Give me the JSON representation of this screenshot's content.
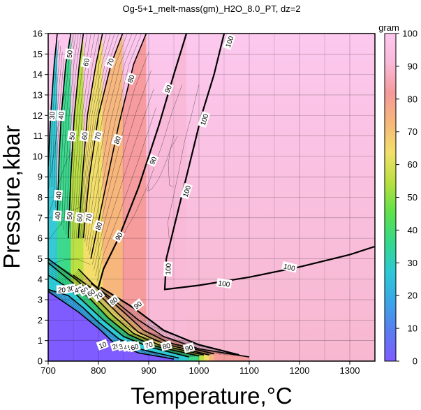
{
  "chart_data": {
    "type": "heatmap",
    "title": "Og-5+1_melt-mass(gm)_H2O_8.0_PT, dz=2",
    "xlabel": "Temperature,°C",
    "ylabel": "Pressure,kbar",
    "colorbar_label": "gram",
    "xlim": [
      700,
      1350
    ],
    "ylim": [
      0,
      16
    ],
    "zlim": [
      0,
      100
    ],
    "x_ticks": [
      700,
      800,
      900,
      1000,
      1100,
      1200,
      1300
    ],
    "y_ticks": [
      0,
      1,
      2,
      3,
      4,
      5,
      6,
      7,
      8,
      9,
      10,
      11,
      12,
      13,
      14,
      15,
      16
    ],
    "colorbar_ticks": [
      0,
      10,
      20,
      30,
      40,
      50,
      60,
      70,
      80,
      90,
      100
    ],
    "grid": true,
    "colormap": [
      "#7f5cff",
      "#5a7cf0",
      "#3aa6e8",
      "#2cc9d6",
      "#34d98a",
      "#5fe14a",
      "#b8e040",
      "#f2e06a",
      "#f7b77a",
      "#f59a9a",
      "#f9b9d8",
      "#ffc8f0"
    ],
    "contours": [
      {
        "level": 10,
        "label": "10",
        "points": [
          [
            700,
            3.4
          ],
          [
            760,
            2.4
          ],
          [
            800,
            1.6
          ],
          [
            830,
            0.9
          ],
          [
            880,
            0.4
          ],
          [
            950,
            0.1
          ]
        ]
      },
      {
        "level": 20,
        "label": "20",
        "points": [
          [
            700,
            3.5
          ],
          [
            740,
            3.2
          ],
          [
            770,
            2.6
          ],
          [
            800,
            1.9
          ],
          [
            840,
            1.1
          ],
          [
            880,
            0.6
          ],
          [
            960,
            0.15
          ]
        ]
      },
      {
        "level": 30,
        "label": "30",
        "points": [
          [
            700,
            9.5
          ],
          [
            705,
            12.0
          ],
          [
            712,
            14.5
          ],
          [
            718,
            16
          ],
          null,
          [
            700,
            4.2
          ],
          [
            745,
            3.5
          ],
          [
            775,
            2.8
          ],
          [
            810,
            2.0
          ],
          [
            850,
            1.2
          ],
          [
            900,
            0.7
          ],
          [
            980,
            0.2
          ]
        ]
      },
      {
        "level": 40,
        "label": "40",
        "points": [
          [
            718,
            7.0
          ],
          [
            722,
            10.0
          ],
          [
            726,
            12.0
          ],
          [
            735,
            14.5
          ],
          [
            745,
            16
          ],
          null,
          [
            700,
            4.8
          ],
          [
            750,
            3.8
          ],
          [
            785,
            3.0
          ],
          [
            820,
            2.1
          ],
          [
            860,
            1.3
          ],
          [
            910,
            0.75
          ],
          [
            1000,
            0.25
          ]
        ]
      },
      {
        "level": 50,
        "label": "50",
        "points": [
          [
            740,
            6.0
          ],
          [
            745,
            9.0
          ],
          [
            752,
            12.0
          ],
          [
            762,
            14.5
          ],
          [
            770,
            16
          ],
          null,
          [
            700,
            5.0
          ],
          [
            755,
            4.0
          ],
          [
            790,
            3.2
          ],
          [
            830,
            2.2
          ],
          [
            870,
            1.35
          ],
          [
            920,
            0.8
          ],
          [
            1010,
            0.3
          ]
        ]
      },
      {
        "level": 60,
        "label": "60",
        "points": [
          [
            760,
            6.0
          ],
          [
            768,
            9.0
          ],
          [
            778,
            12.0
          ],
          [
            795,
            14.5
          ],
          [
            808,
            16
          ],
          null,
          [
            750,
            4.2
          ],
          [
            795,
            3.4
          ],
          [
            840,
            2.3
          ],
          [
            880,
            1.4
          ],
          [
            930,
            0.85
          ],
          [
            1020,
            0.3
          ]
        ]
      },
      {
        "level": 70,
        "label": "70",
        "points": [
          [
            770,
            6.0
          ],
          [
            782,
            9.0
          ],
          [
            800,
            12.0
          ],
          [
            825,
            14.5
          ],
          [
            848,
            16
          ],
          null,
          [
            760,
            4.5
          ],
          [
            800,
            3.5
          ],
          [
            850,
            2.4
          ],
          [
            890,
            1.5
          ],
          [
            940,
            0.9
          ],
          [
            1030,
            0.35
          ]
        ]
      },
      {
        "level": 80,
        "label": "80",
        "points": [
          [
            785,
            5.0
          ],
          [
            810,
            8.0
          ],
          [
            840,
            11.5
          ],
          [
            870,
            14.5
          ],
          [
            895,
            16
          ],
          null,
          [
            785,
            3.8
          ],
          [
            830,
            3.0
          ],
          [
            880,
            2.0
          ],
          [
            930,
            1.2
          ],
          [
            1000,
            0.6
          ],
          [
            1100,
            0.2
          ]
        ]
      },
      {
        "level": 90,
        "label": "90",
        "points": [
          [
            800,
            3.6
          ],
          [
            810,
            4.5
          ],
          [
            840,
            6.0
          ],
          [
            880,
            8.5
          ],
          [
            920,
            11.5
          ],
          [
            950,
            14.0
          ],
          [
            975,
            16
          ],
          null,
          [
            805,
            3.6
          ],
          [
            870,
            2.6
          ],
          [
            930,
            1.5
          ],
          [
            1000,
            0.8
          ],
          [
            1080,
            0.3
          ]
        ]
      },
      {
        "level": 100,
        "label": "100",
        "points": [
          [
            1050,
            16
          ],
          [
            1030,
            14.0
          ],
          [
            1005,
            12.0
          ],
          [
            980,
            9.5
          ],
          [
            955,
            7.0
          ],
          [
            935,
            5.0
          ],
          [
            932,
            3.5
          ],
          [
            1000,
            3.7
          ],
          [
            1100,
            4.1
          ],
          [
            1200,
            4.6
          ],
          [
            1300,
            5.2
          ],
          [
            1350,
            5.6
          ]
        ]
      }
    ],
    "contour_labels": [
      {
        "text": "30",
        "x": 707,
        "y": 12.0,
        "angle": -86
      },
      {
        "text": "40",
        "x": 725,
        "y": 12.0,
        "angle": -86
      },
      {
        "text": "50",
        "x": 742,
        "y": 15.0,
        "angle": -84
      },
      {
        "text": "60",
        "x": 775,
        "y": 14.6,
        "angle": -78
      },
      {
        "text": "70",
        "x": 823,
        "y": 14.6,
        "angle": -70
      },
      {
        "text": "80",
        "x": 864,
        "y": 13.8,
        "angle": -66
      },
      {
        "text": "50",
        "x": 747,
        "y": 11.0,
        "angle": -84
      },
      {
        "text": "60",
        "x": 772,
        "y": 11.0,
        "angle": -82
      },
      {
        "text": "70",
        "x": 798,
        "y": 11.0,
        "angle": -76
      },
      {
        "text": "80",
        "x": 837,
        "y": 10.8,
        "angle": -70
      },
      {
        "text": "90",
        "x": 938,
        "y": 13.3,
        "angle": -66
      },
      {
        "text": "90",
        "x": 908,
        "y": 9.8,
        "angle": -66
      },
      {
        "text": "40",
        "x": 720,
        "y": 8.1,
        "angle": -86
      },
      {
        "text": "40",
        "x": 718,
        "y": 7.1,
        "angle": -86
      },
      {
        "text": "50",
        "x": 742,
        "y": 7.1,
        "angle": -84
      },
      {
        "text": "60",
        "x": 762,
        "y": 7.0,
        "angle": -82
      },
      {
        "text": "70",
        "x": 780,
        "y": 7.0,
        "angle": -80
      },
      {
        "text": "80",
        "x": 800,
        "y": 6.6,
        "angle": -72
      },
      {
        "text": "90",
        "x": 840,
        "y": 6.1,
        "angle": -60
      },
      {
        "text": "100",
        "x": 1060,
        "y": 15.6,
        "angle": -70
      },
      {
        "text": "100",
        "x": 1010,
        "y": 11.8,
        "angle": -72
      },
      {
        "text": "100",
        "x": 975,
        "y": 8.3,
        "angle": -72
      },
      {
        "text": "100",
        "x": 938,
        "y": 4.5,
        "angle": -88
      },
      {
        "text": "100",
        "x": 1180,
        "y": 4.6,
        "angle": 14
      },
      {
        "text": "100",
        "x": 1050,
        "y": 3.8,
        "angle": 8
      },
      {
        "text": "20",
        "x": 727,
        "y": 3.5,
        "angle": 0
      },
      {
        "text": "30",
        "x": 745,
        "y": 3.55,
        "angle": -10
      },
      {
        "text": "40",
        "x": 760,
        "y": 3.5,
        "angle": -20
      },
      {
        "text": "50",
        "x": 772,
        "y": 3.45,
        "angle": -30
      },
      {
        "text": "60",
        "x": 785,
        "y": 3.35,
        "angle": -35
      },
      {
        "text": "70",
        "x": 800,
        "y": 3.2,
        "angle": -38
      },
      {
        "text": "80",
        "x": 830,
        "y": 2.95,
        "angle": -40
      },
      {
        "text": "90",
        "x": 878,
        "y": 2.75,
        "angle": -38
      },
      {
        "text": "10",
        "x": 808,
        "y": 0.8,
        "angle": -20
      },
      {
        "text": "20",
        "x": 835,
        "y": 0.75,
        "angle": -18
      },
      {
        "text": "30",
        "x": 848,
        "y": 0.75,
        "angle": -18
      },
      {
        "text": "40",
        "x": 858,
        "y": 0.72,
        "angle": -17
      },
      {
        "text": "50",
        "x": 866,
        "y": 0.72,
        "angle": -17
      },
      {
        "text": "60",
        "x": 872,
        "y": 0.7,
        "angle": -16
      },
      {
        "text": "70",
        "x": 900,
        "y": 0.8,
        "angle": -16
      },
      {
        "text": "80",
        "x": 935,
        "y": 0.75,
        "angle": -15
      },
      {
        "text": "90",
        "x": 980,
        "y": 0.65,
        "angle": -15
      }
    ]
  }
}
